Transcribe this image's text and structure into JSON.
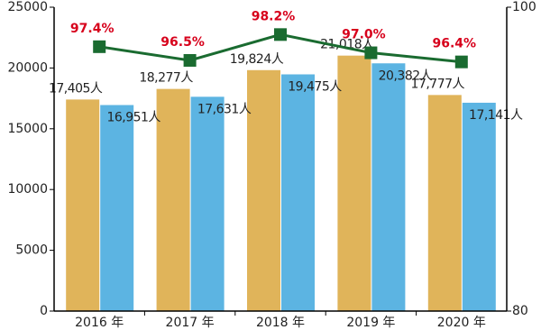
{
  "chart_data": {
    "type": "bar-line",
    "categories": [
      "2016 年",
      "2017 年",
      "2018 年",
      "2019 年",
      "2020 年"
    ],
    "series": [
      {
        "type": "bar",
        "color": "#e0b45a",
        "values": [
          17405,
          18277,
          19824,
          21018,
          17777
        ],
        "value_labels": [
          "17,405人",
          "18,277人",
          "19,824人",
          "21,018人",
          "17,777人"
        ]
      },
      {
        "type": "bar",
        "color": "#5cb4e2",
        "values": [
          16951,
          17631,
          19475,
          20382,
          17141
        ],
        "value_labels": [
          "16,951人",
          "17,631人",
          "19,475人",
          "20,382人",
          "17,141人"
        ]
      },
      {
        "type": "line",
        "axis": "y2",
        "color": "#1a6b30",
        "label_color": "#d7001b",
        "values": [
          97.4,
          96.5,
          98.2,
          97.0,
          96.4
        ],
        "value_labels": [
          "97.4%",
          "96.5%",
          "98.2%",
          "97.0%",
          "96.4%"
        ]
      }
    ],
    "ylim": [
      0,
      25000
    ],
    "yticks": [
      0,
      5000,
      10000,
      15000,
      20000,
      25000
    ],
    "y2lim": [
      80,
      100
    ],
    "y2ticks": [
      80,
      100
    ]
  }
}
